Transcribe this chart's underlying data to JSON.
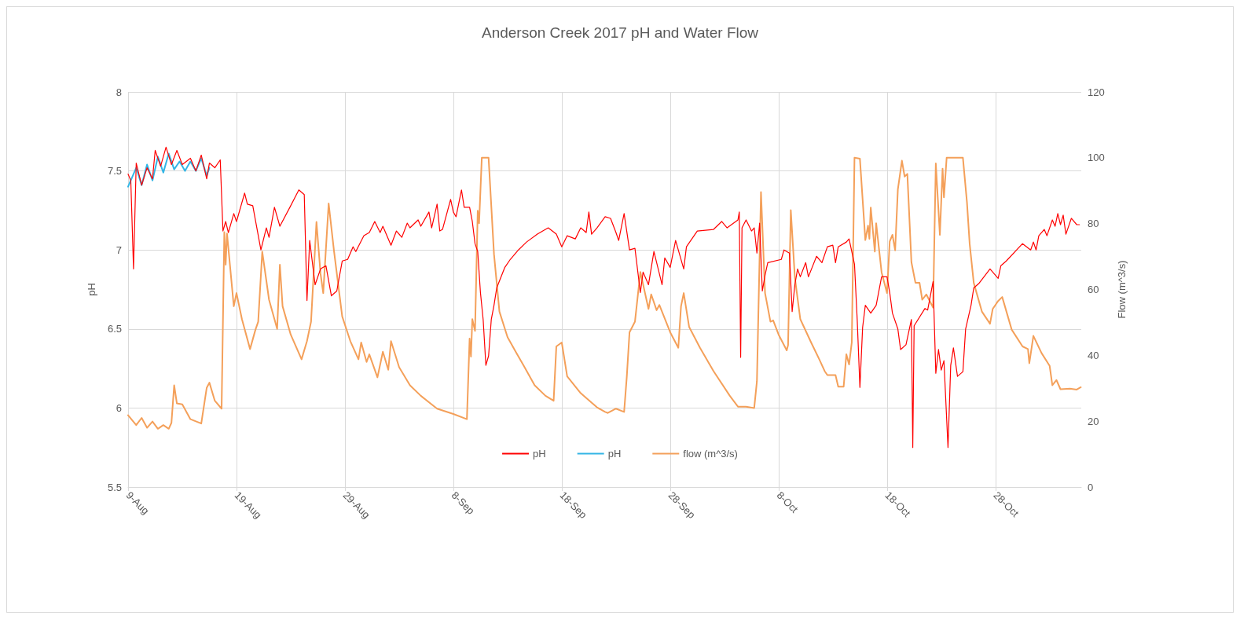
{
  "chart_data": {
    "type": "line",
    "title": "Anderson Creek 2017 pH and Water Flow",
    "ylabel": "pH",
    "y2label": "Flow (m^3/s)",
    "xlim": [
      "--08-09",
      "--11-04T22:00"
    ],
    "xticks": [
      {
        "value": "--08-09",
        "label": "9-Aug"
      },
      {
        "value": "--08-19",
        "label": "19-Aug"
      },
      {
        "value": "--08-29",
        "label": "29-Aug"
      },
      {
        "value": "--09-08",
        "label": "8-Sep"
      },
      {
        "value": "--09-18",
        "label": "18-Sep"
      },
      {
        "value": "--09-28",
        "label": "28-Sep"
      },
      {
        "value": "--10-08",
        "label": "8-Oct"
      },
      {
        "value": "--10-18",
        "label": "18-Oct"
      },
      {
        "value": "--10-28",
        "label": "28-Oct"
      }
    ],
    "ylim": [
      5.5,
      8
    ],
    "yticks": [
      5.5,
      6,
      6.5,
      7,
      7.5,
      8
    ],
    "y2lim": [
      0,
      120
    ],
    "y2ticks": [
      0,
      20,
      40,
      60,
      80,
      100,
      120
    ],
    "grid": true,
    "legend": "bottom",
    "series": [
      {
        "name": "pH",
        "color": "#ff0000",
        "x": [
          "--08-09",
          "--08-09T06:00",
          "--08-09T12:00",
          "--08-09T18:00",
          "--08-10T06:00",
          "--08-10T18:00",
          "--08-11T06:00",
          "--08-11T12:00",
          "--08-12",
          "--08-12T12:00",
          "--08-13",
          "--08-13T12:00",
          "--08-14",
          "--08-14T18:00",
          "--08-15T06:00",
          "--08-15T18:00",
          "--08-16T06:00",
          "--08-16T12:00",
          "--08-17",
          "--08-17T12:00",
          "--08-17T18:00",
          "--08-18",
          "--08-18T06:00",
          "--08-18T18:00",
          "--08-19",
          "--08-19T18:00",
          "--08-20",
          "--08-20T12:00",
          "--08-21T06:00",
          "--08-21T18:00",
          "--08-22",
          "--08-22T12:00",
          "--08-23",
          "--08-24",
          "--08-24T18:00",
          "--08-25T06:00",
          "--08-25T12:00",
          "--08-25T18:00",
          "--08-26T06:00",
          "--08-26T18:00",
          "--08-27T06:00",
          "--08-27T18:00",
          "--08-28T06:00",
          "--08-28T18:00",
          "--08-29T06:00",
          "--08-29T18:00",
          "--08-30",
          "--08-30T18:00",
          "--08-31T06:00",
          "--08-31T18:00",
          "--09-01T06:00",
          "--09-01T12:00",
          "--09-02T06:00",
          "--09-02T18:00",
          "--09-03T06:00",
          "--09-03T18:00",
          "--09-04",
          "--09-04T18:00",
          "--09-05",
          "--09-05T18:00",
          "--09-06",
          "--09-06T12:00",
          "--09-06T18:00",
          "--09-07",
          "--09-07T18:00",
          "--09-08",
          "--09-08T06:00",
          "--09-08T18:00",
          "--09-09",
          "--09-09T12:00",
          "--09-09T18:00",
          "--09-10",
          "--09-10T06:00",
          "--09-10T12:00",
          "--09-10T18:00",
          "--09-11",
          "--09-11T06:00",
          "--09-11T12:00",
          "--09-11T18:00",
          "--09-12",
          "--09-12T18:00",
          "--09-13T06:00",
          "--09-14",
          "--09-14T18:00",
          "--09-15T18:00",
          "--09-16T18:00",
          "--09-17T12:00",
          "--09-18",
          "--09-18T12:00",
          "--09-19T06:00",
          "--09-19T18:00",
          "--09-20T06:00",
          "--09-20T12:00",
          "--09-20T18:00",
          "--09-21T06:00",
          "--09-22",
          "--09-22T12:00",
          "--09-23",
          "--09-23T06:00",
          "--09-23T18:00",
          "--09-24T06:00",
          "--09-24T18:00",
          "--09-25T06:00",
          "--09-25T12:00",
          "--09-26",
          "--09-26T12:00",
          "--09-27T06:00",
          "--09-27T12:00",
          "--09-28",
          "--09-28T12:00",
          "--09-29T06:00",
          "--09-29T12:00",
          "--09-30",
          "--09-30T12:00",
          "--10-02",
          "--10-02T18:00",
          "--10-03T06:00",
          "--10-04T06:00",
          "--10-04T09:00",
          "--10-04T12:00",
          "--10-04T15:00",
          "--10-05",
          "--10-05T12:00",
          "--10-05T18:00",
          "--10-06",
          "--10-06T06:00",
          "--10-06T12:00",
          "--10-06T18:00",
          "--10-07",
          "--10-08T06:00",
          "--10-08T12:00",
          "--10-09",
          "--10-09T06:00",
          "--10-09T12:00",
          "--10-09T18:00",
          "--10-10",
          "--10-10T12:00",
          "--10-10T18:00",
          "--10-11T12:00",
          "--10-12",
          "--10-12T12:00",
          "--10-13",
          "--10-13T06:00",
          "--10-13T12:00",
          "--10-14T06:00",
          "--10-14T12:00",
          "--10-15",
          "--10-15T06:00",
          "--10-15T12:00",
          "--10-15T18:00",
          "--10-16",
          "--10-16T12:00",
          "--10-17",
          "--10-17T12:00",
          "--10-18",
          "--10-18T06:00",
          "--10-18T12:00",
          "--10-19",
          "--10-19T06:00",
          "--10-19T18:00",
          "--10-20T06:00",
          "--10-20T09:00",
          "--10-20T12:00",
          "--10-21T12:00",
          "--10-21T18:00",
          "--10-22T06:00",
          "--10-22T12:00",
          "--10-22T18:00",
          "--10-23",
          "--10-23T06:00",
          "--10-23T15:00",
          "--10-23T21:00",
          "--10-24T03:00",
          "--10-24T12:00",
          "--10-25",
          "--10-25T06:00",
          "--10-25T18:00",
          "--10-26",
          "--10-26T12:00",
          "--10-27T12:00",
          "--10-28T06:00",
          "--10-28T12:00",
          "--10-29",
          "--10-30T12:00",
          "--10-31T06:00",
          "--10-31T12:00",
          "--10-31T18:00",
          "--11-01",
          "--11-01T12:00",
          "--11-01T18:00",
          "--11-02T06:00",
          "--11-02T12:00",
          "--11-02T18:00",
          "--11-03",
          "--11-03T06:00",
          "--11-03T12:00",
          "--11-04",
          "--11-04T12:00",
          "--11-04T18:00"
        ],
        "values": [
          7.48,
          7.44,
          6.88,
          7.55,
          7.41,
          7.52,
          7.45,
          7.63,
          7.53,
          7.65,
          7.54,
          7.63,
          7.54,
          7.58,
          7.5,
          7.6,
          7.45,
          7.55,
          7.52,
          7.57,
          7.12,
          7.18,
          7.11,
          7.23,
          7.18,
          7.36,
          7.29,
          7.28,
          7.0,
          7.14,
          7.08,
          7.27,
          7.15,
          7.28,
          7.38,
          7.35,
          6.68,
          7.06,
          6.78,
          6.88,
          6.9,
          6.71,
          6.74,
          6.93,
          6.94,
          7.02,
          6.99,
          7.09,
          7.11,
          7.18,
          7.11,
          7.15,
          7.03,
          7.12,
          7.08,
          7.17,
          7.14,
          7.19,
          7.15,
          7.24,
          7.14,
          7.29,
          7.12,
          7.13,
          7.32,
          7.24,
          7.21,
          7.38,
          7.27,
          7.27,
          7.18,
          7.04,
          6.99,
          6.73,
          6.56,
          6.27,
          6.33,
          6.56,
          6.65,
          6.76,
          6.89,
          6.94,
          7.0,
          7.05,
          7.1,
          7.14,
          7.1,
          7.02,
          7.09,
          7.07,
          7.14,
          7.11,
          7.24,
          7.1,
          7.14,
          7.21,
          7.2,
          7.11,
          7.06,
          7.23,
          7.0,
          7.01,
          6.73,
          6.86,
          6.78,
          6.99,
          6.78,
          6.95,
          6.89,
          7.06,
          6.88,
          7.02,
          7.07,
          7.12,
          7.13,
          7.18,
          7.14,
          7.19,
          7.24,
          6.32,
          7.14,
          7.19,
          7.12,
          7.14,
          6.98,
          7.17,
          6.74,
          6.84,
          6.92,
          6.94,
          7.0,
          6.98,
          6.61,
          6.78,
          6.88,
          6.83,
          6.92,
          6.83,
          6.96,
          6.92,
          7.02,
          7.03,
          6.92,
          7.02,
          7.05,
          7.07,
          6.91,
          6.56,
          6.13,
          6.51,
          6.65,
          6.6,
          6.65,
          6.83,
          6.83,
          6.73,
          6.6,
          6.5,
          6.37,
          6.4,
          6.56,
          5.75,
          6.52,
          6.63,
          6.62,
          6.8,
          6.22,
          6.37,
          6.24,
          6.3,
          5.75,
          6.27,
          6.38,
          6.2,
          6.23,
          6.5,
          6.65,
          6.76,
          6.79,
          6.88,
          6.82,
          6.9,
          6.93,
          7.04,
          7.0,
          7.05,
          7.0,
          7.09,
          7.13,
          7.09,
          7.19,
          7.15,
          7.23,
          7.16,
          7.22,
          7.1,
          7.2,
          7.16,
          7.16
        ]
      },
      {
        "name": "pH",
        "color": "#33b5e5",
        "x": [
          "--08-09",
          "--08-09T18:00",
          "--08-10T06:00",
          "--08-10T18:00",
          "--08-11T06:00",
          "--08-11T18:00",
          "--08-12T06:00",
          "--08-12T18:00",
          "--08-13T06:00",
          "--08-13T18:00",
          "--08-14T06:00",
          "--08-14T18:00",
          "--08-15T06:00",
          "--08-15T18:00",
          "--08-16T06:00",
          "--08-16T12:00"
        ],
        "values": [
          7.4,
          7.52,
          7.41,
          7.54,
          7.44,
          7.59,
          7.49,
          7.61,
          7.51,
          7.56,
          7.5,
          7.56,
          7.5,
          7.58,
          7.47,
          7.52
        ]
      },
      {
        "name": "flow (m^3/s)",
        "color": "#f4a05a",
        "axis": "y2",
        "x": [
          "--08-09",
          "--08-09T18:00",
          "--08-10T06:00",
          "--08-10T18:00",
          "--08-11T06:00",
          "--08-11T18:00",
          "--08-12T06:00",
          "--08-12T18:00",
          "--08-13",
          "--08-13T06:00",
          "--08-13T12:00",
          "--08-14",
          "--08-14T18:00",
          "--08-15T18:00",
          "--08-16T06:00",
          "--08-16T12:00",
          "--08-17",
          "--08-17T15:00",
          "--08-17T21:00",
          "--08-18",
          "--08-18T03:00",
          "--08-18T18:00",
          "--08-19",
          "--08-19T12:00",
          "--08-20T06:00",
          "--08-20T18:00",
          "--08-21",
          "--08-21T09:00",
          "--08-22",
          "--08-22T18:00",
          "--08-23",
          "--08-23T06:00",
          "--08-24",
          "--08-25",
          "--08-25T12:00",
          "--08-25T21:00",
          "--08-26T09:00",
          "--08-26T18:00",
          "--08-27",
          "--08-27T12:00",
          "--08-28",
          "--08-28T18:00",
          "--08-29T12:00",
          "--08-30T06:00",
          "--08-30T12:00",
          "--08-31",
          "--08-31T06:00",
          "--09-01",
          "--09-01T12:00",
          "--09-02",
          "--09-02T06:00",
          "--09-03",
          "--09-04",
          "--09-05",
          "--09-06T12:00",
          "--09-08",
          "--09-09T06:00",
          "--09-09T12:00",
          "--09-09T15:00",
          "--09-09T18:00",
          "--09-10",
          "--09-10T06:00",
          "--09-10T09:00",
          "--09-10T15:00",
          "--09-11T06:00",
          "--09-11T18:00",
          "--09-12T06:00",
          "--09-13",
          "--09-13T18:00",
          "--09-14T12:00",
          "--09-15T12:00",
          "--09-16T12:00",
          "--09-17T06:00",
          "--09-17T12:00",
          "--09-18",
          "--09-18T12:00",
          "--09-19T18:00",
          "--09-21T06:00",
          "--09-22",
          "--09-22T06:00",
          "--09-23",
          "--09-23T18:00",
          "--09-24",
          "--09-24T06:00",
          "--09-24T18:00",
          "--09-25T06:00",
          "--09-26",
          "--09-26T06:00",
          "--09-26T18:00",
          "--09-27",
          "--09-28",
          "--09-28T18:00",
          "--09-29",
          "--09-29T06:00",
          "--09-29T18:00",
          "--09-30T18:00",
          "--10-02",
          "--10-03T12:00",
          "--10-04T06:00",
          "--10-05",
          "--10-05T18:00",
          "--10-06",
          "--10-06T09:00",
          "--10-06T18:00",
          "--10-07T06:00",
          "--10-07T12:00",
          "--10-08",
          "--10-08T18:00",
          "--10-08T21:00",
          "--10-09T03:00",
          "--10-09T12:00",
          "--10-10",
          "--10-11",
          "--10-11T18:00",
          "--10-12T06:00",
          "--10-12T12:00",
          "--10-13T06:00",
          "--10-13T12:00",
          "--10-14",
          "--10-14T06:00",
          "--10-14T12:00",
          "--10-14T18:00",
          "--10-15",
          "--10-15T12:00",
          "--10-16",
          "--10-16T06:00",
          "--10-16T09:00",
          "--10-16T12:00",
          "--10-16T21:00",
          "--10-17",
          "--10-17T12:00",
          "--10-18",
          "--10-18T06:00",
          "--10-18T12:00",
          "--10-18T18:00",
          "--10-19",
          "--10-19T09:00",
          "--10-19T15:00",
          "--10-19T21:00",
          "--10-20T06:00",
          "--10-20T15:00",
          "--10-21",
          "--10-21T06:00",
          "--10-21T15:00",
          "--10-21T21:00",
          "--10-22T06:00",
          "--10-22T12:00",
          "--10-22T21:00",
          "--10-23T03:00",
          "--10-23T06:00",
          "--10-23T12:00",
          "--10-25",
          "--10-25T09:00",
          "--10-25T15:00",
          "--10-26",
          "--10-26T18:00",
          "--10-27T12:00",
          "--10-27T18:00",
          "--10-28T06:00",
          "--10-28T15:00",
          "--10-29T12:00",
          "--10-30T12:00",
          "--10-31",
          "--10-31T03:00",
          "--10-31T12:00",
          "--11-01T06:00",
          "--11-02",
          "--11-02T06:00",
          "--11-02T15:00",
          "--11-03",
          "--11-03T21:00",
          "--11-04T12:00",
          "--11-04T21:00"
        ],
        "values": [
          21.8,
          18.8,
          21.0,
          18.0,
          19.9,
          17.7,
          18.8,
          17.7,
          19.5,
          30.9,
          25.4,
          25.1,
          20.6,
          19.3,
          30.1,
          31.7,
          26.2,
          23.8,
          77.4,
          67.5,
          77.0,
          54.9,
          58.9,
          51.0,
          41.9,
          47.8,
          50.2,
          71.5,
          56.9,
          48.0,
          67.5,
          54.9,
          46.3,
          38.8,
          44.3,
          50.2,
          80.5,
          64.8,
          58.9,
          86.1,
          71.5,
          51.8,
          44.3,
          38.8,
          43.9,
          38.0,
          40.3,
          33.3,
          41.1,
          35.6,
          44.3,
          36.4,
          30.9,
          27.7,
          23.8,
          22.2,
          20.6,
          45.1,
          39.6,
          51.0,
          47.4,
          83.9,
          80.1,
          100,
          100,
          70.7,
          53.3,
          45.5,
          41.1,
          36.8,
          30.9,
          27.7,
          26.2,
          42.7,
          43.9,
          33.6,
          28.5,
          24.2,
          22.8,
          22.5,
          23.8,
          22.8,
          33.6,
          47.0,
          50.2,
          65.3,
          54.1,
          58.5,
          53.7,
          55.3,
          47.0,
          42.3,
          54.9,
          58.9,
          48.6,
          42.3,
          35.2,
          27.7,
          24.4,
          24.4,
          24.0,
          32.1,
          89.6,
          58.9,
          50.2,
          50.6,
          46.3,
          41.5,
          43.1,
          84.1,
          63.6,
          51.0,
          43.9,
          38.8,
          35.2,
          34.0,
          34.0,
          30.5,
          30.5,
          40.3,
          37.2,
          43.9,
          100,
          99.7,
          75.0,
          79.4,
          75.4,
          84.9,
          71.5,
          80.1,
          65.2,
          58.9,
          74.6,
          76.6,
          71.9,
          90.4,
          99.1,
          94.3,
          95.1,
          68.3,
          62.0,
          62.0,
          56.9,
          58.5,
          56.9,
          54.5,
          98.3,
          76.6,
          96.7,
          88.0,
          100,
          100,
          86.4,
          73.8,
          62.0,
          53.3,
          49.6,
          54.1,
          56.5,
          57.7,
          47.8,
          42.7,
          41.9,
          37.6,
          45.9,
          40.7,
          36.8,
          30.9,
          32.5,
          29.7,
          29.9,
          29.6,
          30.3
        ]
      }
    ]
  }
}
